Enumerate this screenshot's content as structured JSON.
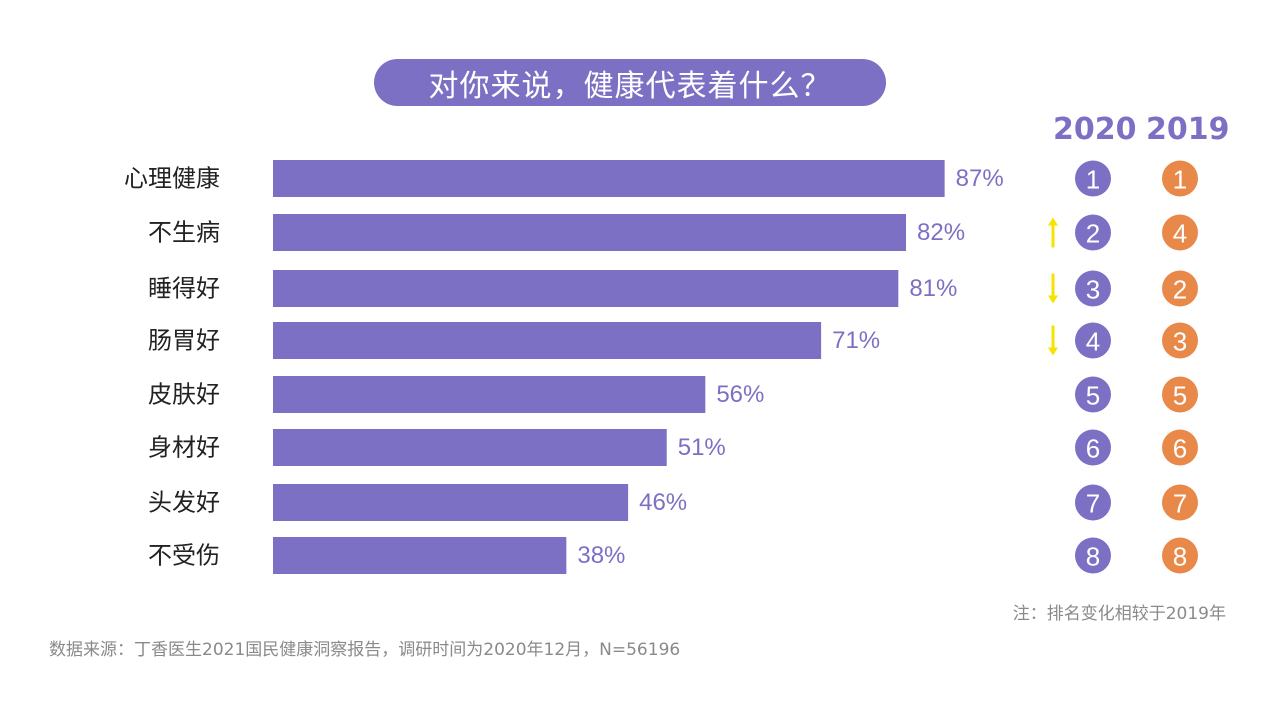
{
  "title": "对你来说，健康代表着什么？",
  "headers": {
    "year_current": "2020",
    "year_previous": "2019"
  },
  "note": "注：排名变化相较于2019年",
  "source": "数据来源：丁香医生2021国民健康洞察报告，调研时间为2020年12月，N=56196",
  "colors": {
    "bar": "#7c70c4",
    "value_text": "#7c70c4",
    "rank_2020": "#7c70c4",
    "rank_2019": "#e8894a",
    "arrow": "#f5e400",
    "category_text": "#222222"
  },
  "chart_data": {
    "type": "bar",
    "orientation": "horizontal",
    "categories": [
      "心理健康",
      "不生病",
      "睡得好",
      "肠胃好",
      "皮肤好",
      "身材好",
      "头发好",
      "不受伤"
    ],
    "values": [
      87,
      82,
      81,
      71,
      56,
      51,
      46,
      38
    ],
    "value_labels": [
      "87%",
      "82%",
      "81%",
      "71%",
      "56%",
      "51%",
      "46%",
      "38%"
    ],
    "rank_2020": [
      "1",
      "2",
      "3",
      "4",
      "5",
      "6",
      "7",
      "8"
    ],
    "rank_2019": [
      "1",
      "4",
      "2",
      "3",
      "5",
      "6",
      "7",
      "8"
    ],
    "rank_change": [
      "none",
      "up",
      "down",
      "down",
      "none",
      "none",
      "none",
      "none"
    ],
    "xlim": [
      0,
      100
    ]
  }
}
